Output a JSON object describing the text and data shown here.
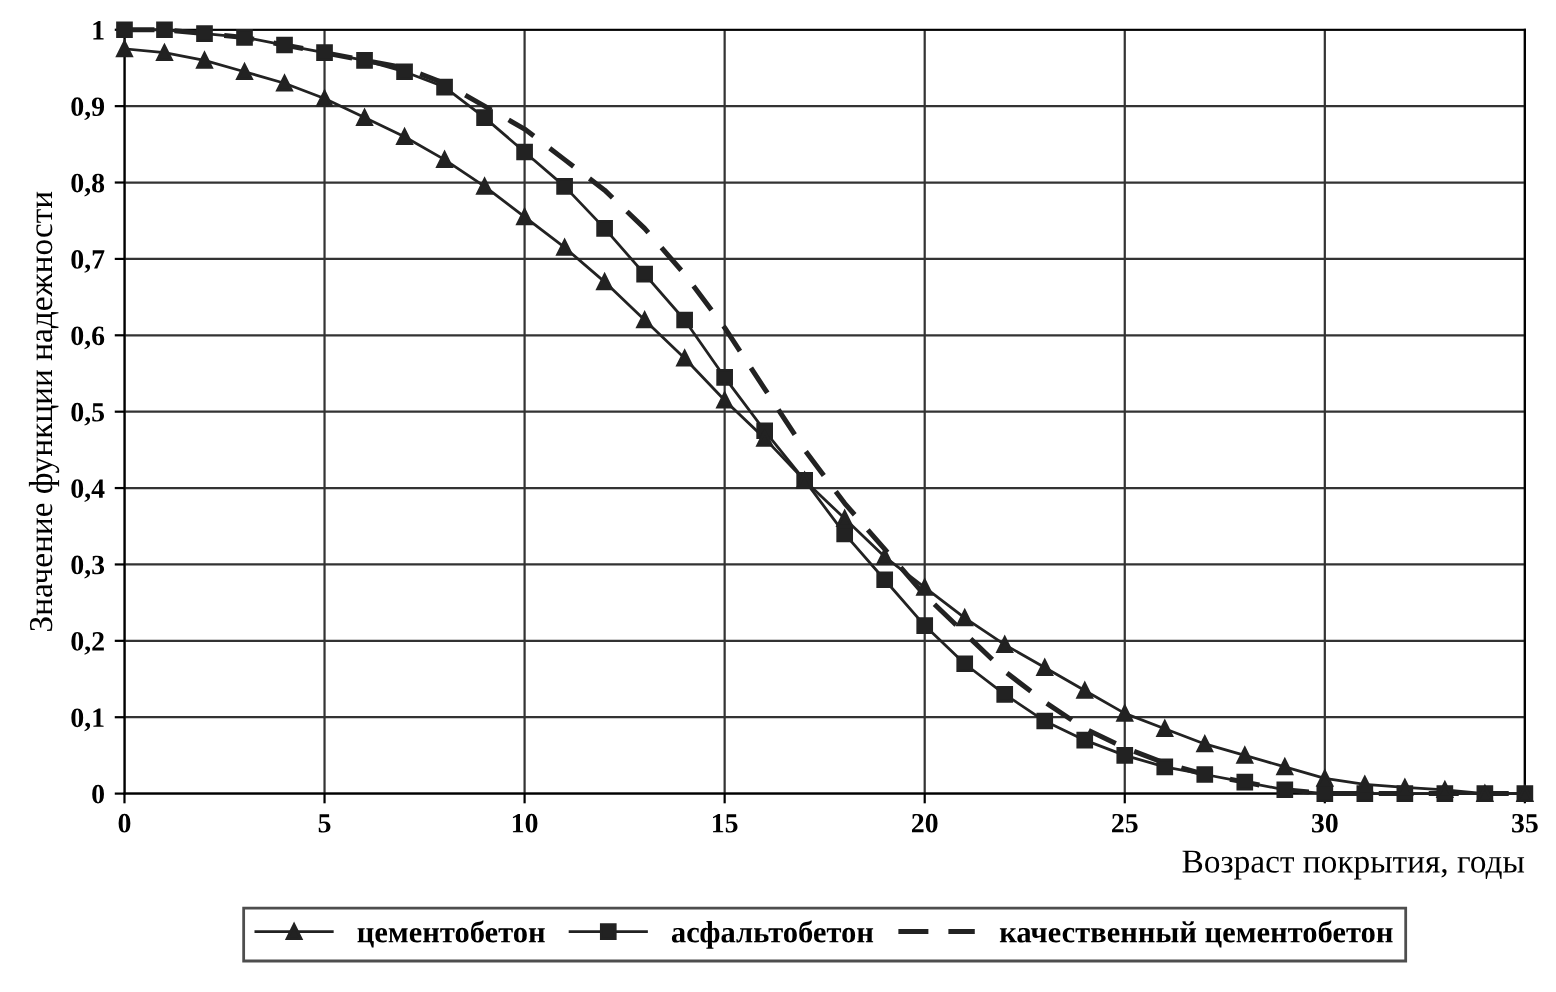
{
  "chart_data": {
    "type": "line",
    "xlabel": "Возраст покрытия, годы",
    "ylabel": "Значение функции надежности",
    "xlim": [
      0,
      35
    ],
    "xticks": [
      0,
      5,
      10,
      15,
      20,
      25,
      30,
      35
    ],
    "ylim": [
      0,
      1
    ],
    "yticks": [
      0,
      {
        "value": 0.1,
        "label": "0,1"
      },
      {
        "value": 0.2,
        "label": "0,2"
      },
      {
        "value": 0.3,
        "label": "0,3"
      },
      {
        "value": 0.4,
        "label": "0,4"
      },
      {
        "value": 0.5,
        "label": "0,5"
      },
      {
        "value": 0.6,
        "label": "0,6"
      },
      {
        "value": 0.7,
        "label": "0,7"
      },
      {
        "value": 0.8,
        "label": "0,8"
      },
      {
        "value": 0.9,
        "label": "0,9"
      },
      1
    ],
    "grid": true,
    "legend": "bottom",
    "x": [
      0,
      1,
      2,
      3,
      4,
      5,
      6,
      7,
      8,
      9,
      10,
      11,
      12,
      13,
      14,
      15,
      16,
      17,
      18,
      19,
      20,
      21,
      22,
      23,
      24,
      25,
      26,
      27,
      28,
      29,
      30,
      31,
      32,
      33,
      34,
      35
    ],
    "series": [
      {
        "name": "цементобетон",
        "color": "#222222",
        "marker": "triangle",
        "line_style": "solid",
        "values": [
          0.975,
          0.97,
          0.96,
          0.945,
          0.93,
          0.91,
          0.885,
          0.86,
          0.83,
          0.795,
          0.755,
          0.715,
          0.67,
          0.62,
          0.57,
          0.515,
          0.465,
          0.41,
          0.36,
          0.31,
          0.27,
          0.23,
          0.195,
          0.165,
          0.135,
          0.105,
          0.085,
          0.065,
          0.05,
          0.035,
          0.02,
          0.012,
          0.008,
          0.005,
          0,
          0
        ]
      },
      {
        "name": "асфальтобетон",
        "color": "#222222",
        "marker": "square",
        "line_style": "solid",
        "values": [
          1,
          1,
          0.995,
          0.99,
          0.98,
          0.97,
          0.96,
          0.945,
          0.925,
          0.885,
          0.84,
          0.795,
          0.74,
          0.68,
          0.62,
          0.545,
          0.475,
          0.41,
          0.34,
          0.28,
          0.22,
          0.17,
          0.13,
          0.095,
          0.07,
          0.05,
          0.035,
          0.025,
          0.015,
          0.005,
          0,
          0,
          0,
          0,
          0,
          0
        ]
      },
      {
        "name": "качественный цементобетон",
        "color": "#222222",
        "marker": "none",
        "line_style": "dashed",
        "values": [
          1,
          1,
          0.995,
          0.99,
          0.98,
          0.97,
          0.96,
          0.95,
          0.93,
          0.9,
          0.87,
          0.83,
          0.79,
          0.74,
          0.68,
          0.61,
          0.53,
          0.45,
          0.38,
          0.32,
          0.26,
          0.21,
          0.16,
          0.12,
          0.085,
          0.06,
          0.04,
          0.025,
          0.015,
          0.005,
          0,
          0,
          0,
          0,
          0,
          0
        ]
      }
    ]
  }
}
